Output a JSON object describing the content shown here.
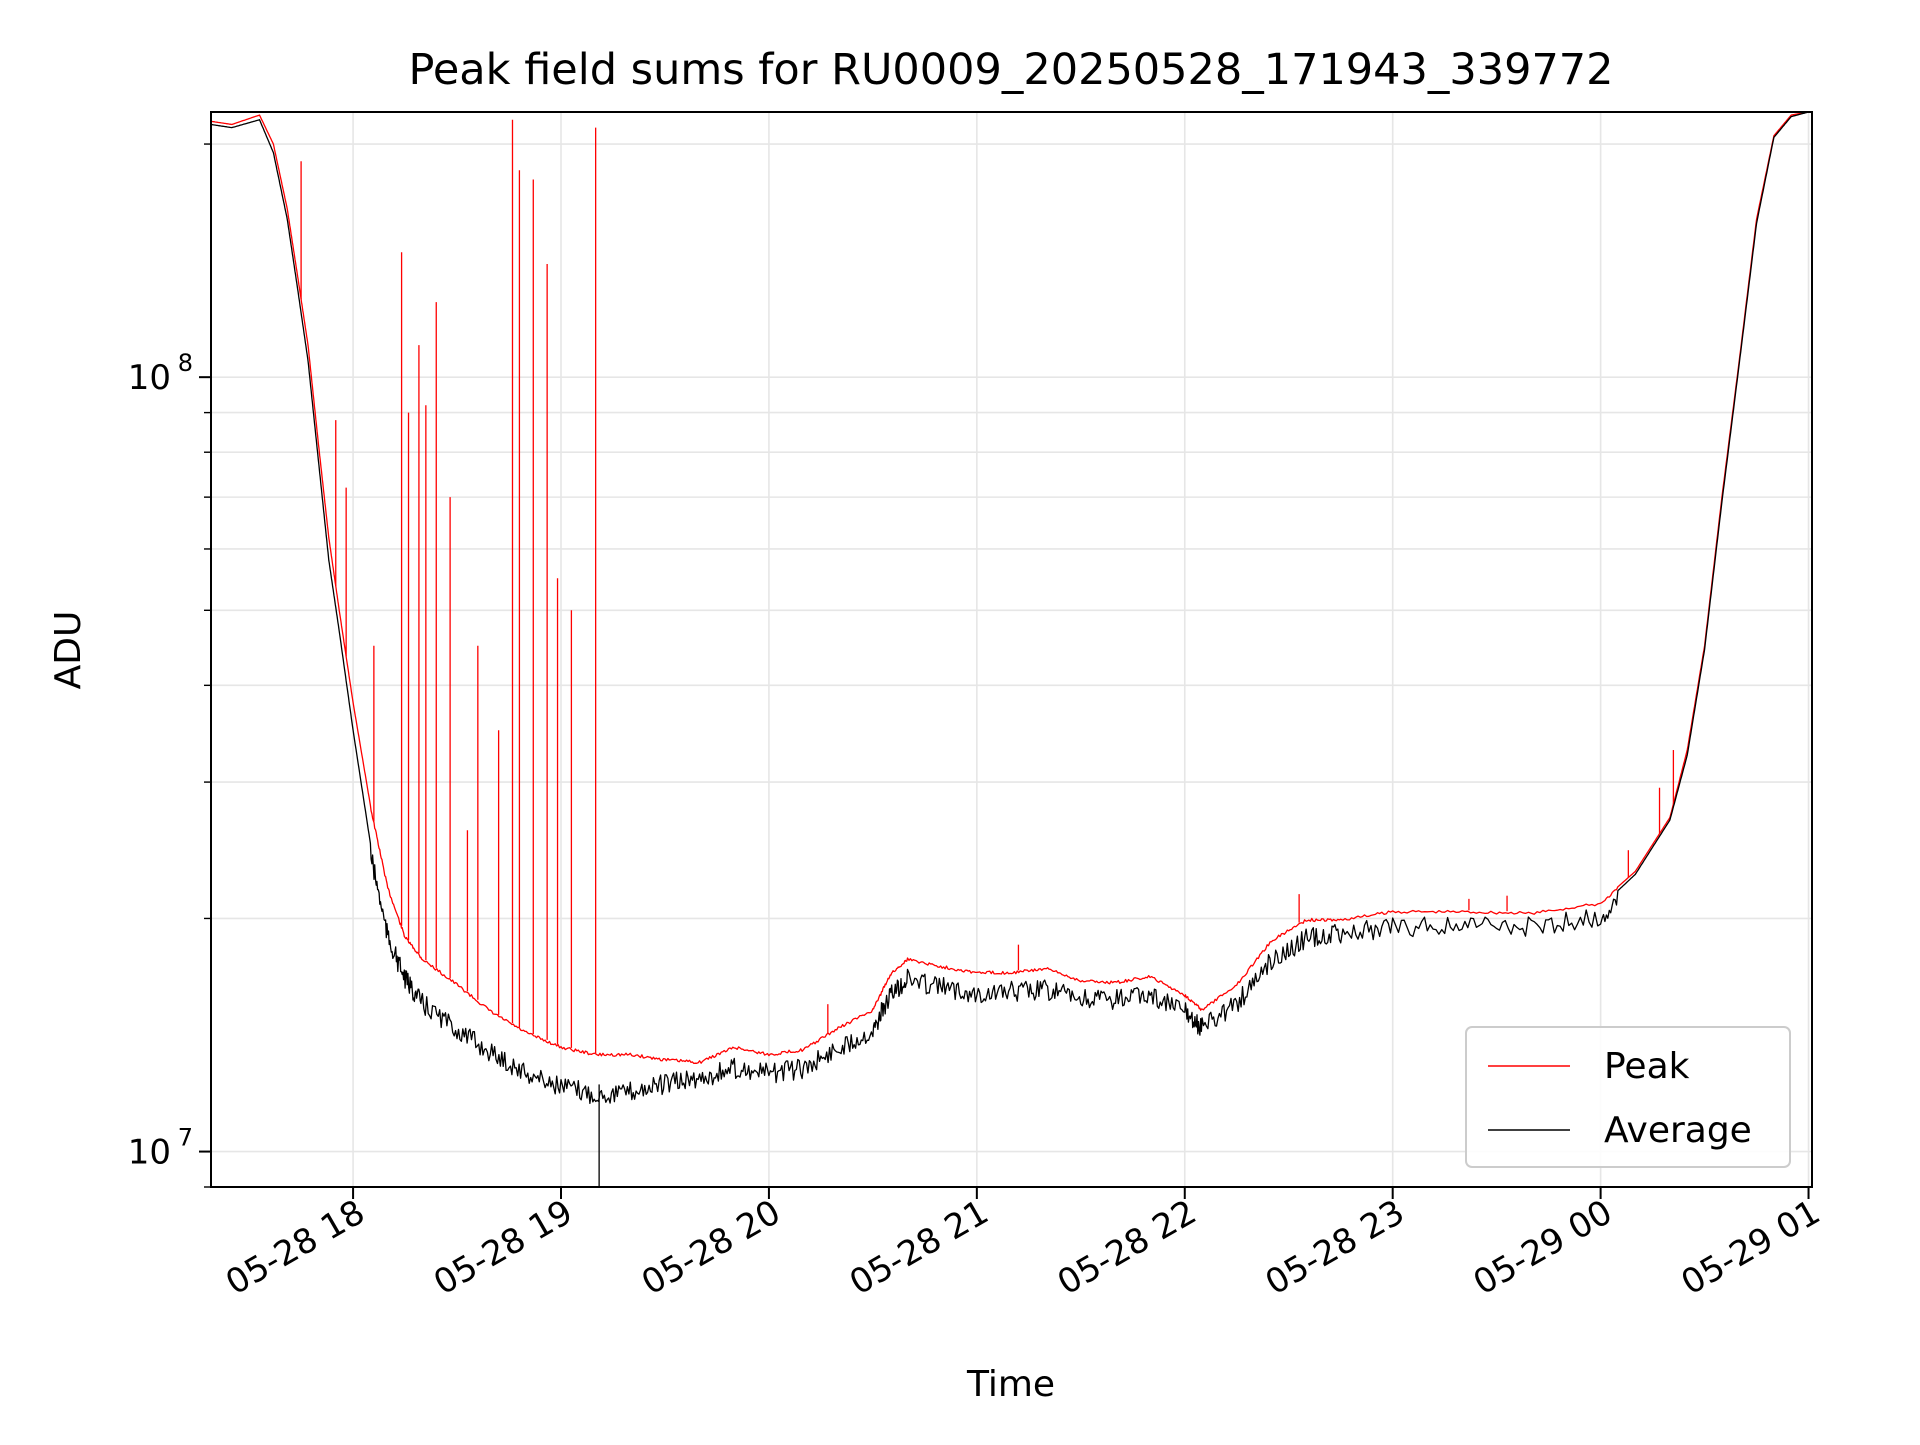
{
  "chart_data": {
    "type": "line",
    "title": "Peak field sums for RU0009_20250528_171943_339772",
    "xlabel": "Time",
    "ylabel": "ADU",
    "yscale": "log",
    "xlim": [
      "2025-05-28 17:19",
      "2025-05-29 01:01"
    ],
    "ylim": [
      9000000,
      220000000
    ],
    "grid": true,
    "legend_position": "lower-right",
    "x_ticks": [
      {
        "value": "2025-05-28 18:00",
        "label": "05-28 18"
      },
      {
        "value": "2025-05-28 19:00",
        "label": "05-28 19"
      },
      {
        "value": "2025-05-28 20:00",
        "label": "05-28 20"
      },
      {
        "value": "2025-05-28 21:00",
        "label": "05-28 21"
      },
      {
        "value": "2025-05-28 22:00",
        "label": "05-28 22"
      },
      {
        "value": "2025-05-28 23:00",
        "label": "05-28 23"
      },
      {
        "value": "2025-05-29 00:00",
        "label": "05-29 00"
      },
      {
        "value": "2025-05-29 01:00",
        "label": "05-29 01"
      }
    ],
    "y_ticks": [
      {
        "value": 10000000,
        "base": "10",
        "exp": "7"
      },
      {
        "value": 100000000,
        "base": "10",
        "exp": "8"
      }
    ],
    "series": [
      {
        "name": "Peak",
        "color": "#ff0000",
        "points": [
          [
            "2025-05-28 17:19",
            214000000
          ],
          [
            "2025-05-28 17:25",
            212000000
          ],
          [
            "2025-05-28 17:33",
            218000000
          ],
          [
            "2025-05-28 17:37",
            200000000
          ],
          [
            "2025-05-28 17:41",
            165000000
          ],
          [
            "2025-05-28 17:44",
            135000000
          ],
          [
            "2025-05-28 17:47",
            110000000
          ],
          [
            "2025-05-28 17:50",
            82000000
          ],
          [
            "2025-05-28 17:53",
            62000000
          ],
          [
            "2025-05-28 17:56",
            50000000
          ],
          [
            "2025-05-28 18:00",
            38000000
          ],
          [
            "2025-05-28 18:05",
            28000000
          ],
          [
            "2025-05-28 18:10",
            22000000
          ],
          [
            "2025-05-28 18:15",
            19000000
          ],
          [
            "2025-05-28 18:20",
            17800000
          ],
          [
            "2025-05-28 18:30",
            16500000
          ],
          [
            "2025-05-28 18:40",
            15200000
          ],
          [
            "2025-05-28 18:50",
            14300000
          ],
          [
            "2025-05-28 19:00",
            13700000
          ],
          [
            "2025-05-28 19:10",
            13400000
          ],
          [
            "2025-05-28 19:20",
            13400000
          ],
          [
            "2025-05-28 19:30",
            13200000
          ],
          [
            "2025-05-28 19:40",
            13100000
          ],
          [
            "2025-05-28 19:50",
            13700000
          ],
          [
            "2025-05-28 20:00",
            13400000
          ],
          [
            "2025-05-28 20:10",
            13600000
          ],
          [
            "2025-05-28 20:20",
            14500000
          ],
          [
            "2025-05-28 20:30",
            15300000
          ],
          [
            "2025-05-28 20:35",
            17000000
          ],
          [
            "2025-05-28 20:40",
            17800000
          ],
          [
            "2025-05-28 20:50",
            17400000
          ],
          [
            "2025-05-28 21:00",
            17100000
          ],
          [
            "2025-05-28 21:10",
            17100000
          ],
          [
            "2025-05-28 21:20",
            17300000
          ],
          [
            "2025-05-28 21:30",
            16700000
          ],
          [
            "2025-05-28 21:40",
            16600000
          ],
          [
            "2025-05-28 21:50",
            16900000
          ],
          [
            "2025-05-28 22:00",
            16000000
          ],
          [
            "2025-05-28 22:05",
            15300000
          ],
          [
            "2025-05-28 22:15",
            16500000
          ],
          [
            "2025-05-28 22:25",
            18800000
          ],
          [
            "2025-05-28 22:35",
            20000000
          ],
          [
            "2025-05-28 22:45",
            20000000
          ],
          [
            "2025-05-28 23:00",
            20500000
          ],
          [
            "2025-05-28 23:20",
            20500000
          ],
          [
            "2025-05-28 23:40",
            20400000
          ],
          [
            "2025-05-29 00:00",
            21000000
          ],
          [
            "2025-05-29 00:10",
            23000000
          ],
          [
            "2025-05-29 00:20",
            27000000
          ],
          [
            "2025-05-29 00:25",
            33000000
          ],
          [
            "2025-05-29 00:30",
            45000000
          ],
          [
            "2025-05-29 00:35",
            70000000
          ],
          [
            "2025-05-29 00:40",
            105000000
          ],
          [
            "2025-05-29 00:45",
            160000000
          ],
          [
            "2025-05-29 00:50",
            205000000
          ],
          [
            "2025-05-29 00:55",
            218000000
          ],
          [
            "2025-05-29 01:00",
            220000000
          ]
        ],
        "spikes": [
          [
            "2025-05-28 17:45",
            190000000
          ],
          [
            "2025-05-28 17:55",
            88000000
          ],
          [
            "2025-05-28 17:58",
            72000000
          ],
          [
            "2025-05-28 18:06",
            45000000
          ],
          [
            "2025-05-28 18:14",
            145000000
          ],
          [
            "2025-05-28 18:16",
            90000000
          ],
          [
            "2025-05-28 18:19",
            110000000
          ],
          [
            "2025-05-28 18:21",
            92000000
          ],
          [
            "2025-05-28 18:24",
            125000000
          ],
          [
            "2025-05-28 18:28",
            70000000
          ],
          [
            "2025-05-28 18:33",
            26000000
          ],
          [
            "2025-05-28 18:36",
            45000000
          ],
          [
            "2025-05-28 18:42",
            35000000
          ],
          [
            "2025-05-28 18:46",
            215000000
          ],
          [
            "2025-05-28 18:48",
            185000000
          ],
          [
            "2025-05-28 18:52",
            180000000
          ],
          [
            "2025-05-28 18:56",
            140000000
          ],
          [
            "2025-05-28 18:59",
            55000000
          ],
          [
            "2025-05-28 19:03",
            50000000
          ],
          [
            "2025-05-28 19:10",
            210000000
          ],
          [
            "2025-05-28 20:17",
            15500000
          ],
          [
            "2025-05-28 21:12",
            18500000
          ],
          [
            "2025-05-28 22:33",
            21500000
          ],
          [
            "2025-05-28 23:22",
            21200000
          ],
          [
            "2025-05-28 23:33",
            21400000
          ],
          [
            "2025-05-29 00:08",
            24500000
          ],
          [
            "2025-05-29 00:17",
            29500000
          ],
          [
            "2025-05-29 00:21",
            33000000
          ]
        ]
      },
      {
        "name": "Average",
        "color": "#000000",
        "points": [
          [
            "2025-05-28 17:19",
            212000000
          ],
          [
            "2025-05-28 17:25",
            210000000
          ],
          [
            "2025-05-28 17:33",
            215000000
          ],
          [
            "2025-05-28 17:37",
            195000000
          ],
          [
            "2025-05-28 17:41",
            160000000
          ],
          [
            "2025-05-28 17:44",
            130000000
          ],
          [
            "2025-05-28 17:47",
            105000000
          ],
          [
            "2025-05-28 17:50",
            78000000
          ],
          [
            "2025-05-28 17:53",
            58000000
          ],
          [
            "2025-05-28 17:56",
            47000000
          ],
          [
            "2025-05-28 18:00",
            35000000
          ],
          [
            "2025-05-28 18:05",
            25000000
          ],
          [
            "2025-05-28 18:10",
            19500000
          ],
          [
            "2025-05-28 18:15",
            17200000
          ],
          [
            "2025-05-28 18:20",
            16000000
          ],
          [
            "2025-05-28 18:30",
            14800000
          ],
          [
            "2025-05-28 18:40",
            13800000
          ],
          [
            "2025-05-28 18:50",
            13000000
          ],
          [
            "2025-05-28 19:00",
            12500000
          ],
          [
            "2025-05-28 19:10",
            12200000
          ],
          [
            "2025-05-28 19:20",
            12300000
          ],
          [
            "2025-05-28 19:30",
            12600000
          ],
          [
            "2025-05-28 19:40",
            12800000
          ],
          [
            "2025-05-28 19:50",
            13200000
          ],
          [
            "2025-05-28 20:00",
            13000000
          ],
          [
            "2025-05-28 20:10",
            13200000
          ],
          [
            "2025-05-28 20:20",
            14000000
          ],
          [
            "2025-05-28 20:30",
            14800000
          ],
          [
            "2025-05-28 20:35",
            16400000
          ],
          [
            "2025-05-28 20:40",
            17200000
          ],
          [
            "2025-05-28 20:50",
            16800000
          ],
          [
            "2025-05-28 21:00",
            16500000
          ],
          [
            "2025-05-28 21:10",
            16600000
          ],
          [
            "2025-05-28 21:20",
            16700000
          ],
          [
            "2025-05-28 21:30",
            16200000
          ],
          [
            "2025-05-28 21:40",
            16200000
          ],
          [
            "2025-05-28 21:50",
            16400000
          ],
          [
            "2025-05-28 22:00",
            15600000
          ],
          [
            "2025-05-28 22:05",
            14900000
          ],
          [
            "2025-05-28 22:15",
            16000000
          ],
          [
            "2025-05-28 22:25",
            18200000
          ],
          [
            "2025-05-28 22:35",
            19400000
          ],
          [
            "2025-05-28 22:45",
            19700000
          ],
          [
            "2025-05-28 23:00",
            20100000
          ],
          [
            "2025-05-28 23:20",
            20200000
          ],
          [
            "2025-05-28 23:40",
            20100000
          ],
          [
            "2025-05-29 00:00",
            20700000
          ],
          [
            "2025-05-29 00:10",
            22800000
          ],
          [
            "2025-05-29 00:20",
            26800000
          ],
          [
            "2025-05-29 00:25",
            32500000
          ],
          [
            "2025-05-29 00:30",
            44500000
          ],
          [
            "2025-05-29 00:35",
            69000000
          ],
          [
            "2025-05-29 00:40",
            104000000
          ],
          [
            "2025-05-29 00:45",
            158000000
          ],
          [
            "2025-05-29 00:50",
            204000000
          ],
          [
            "2025-05-29 00:55",
            217000000
          ],
          [
            "2025-05-29 01:00",
            220000000
          ]
        ],
        "spikes": [
          [
            "2025-05-28 19:11",
            9000000
          ]
        ]
      }
    ]
  }
}
